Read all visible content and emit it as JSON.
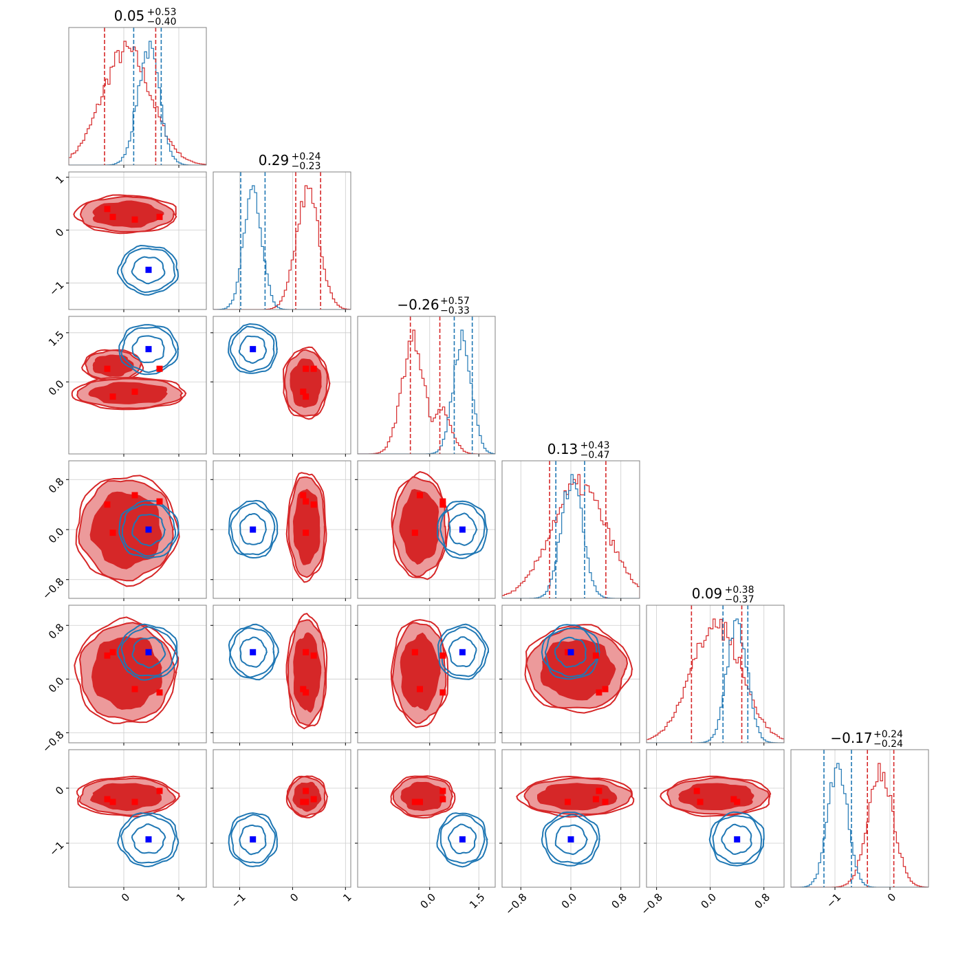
{
  "chart_data": {
    "type": "corner",
    "colors": {
      "red": "#d62728",
      "blue": "#1f77b4",
      "red_fill_inner": "#d62728",
      "red_fill_outer": "#ec9a9b",
      "red_marker": "#ff0000",
      "blue_marker": "#0000ff",
      "grid": "#cccccc",
      "frame": "#808080"
    },
    "grid": true,
    "parameters": [
      {
        "title_main": "0.05",
        "title_sup": "+0.53",
        "title_sub": "−0.40",
        "range": [
          -1.0,
          1.5
        ],
        "ticks": [
          0,
          1
        ],
        "tick_labels": [
          "0",
          "1"
        ],
        "red_hist": {
          "mean": 0.05,
          "sd": 0.45,
          "extra": [
            [
              -0.25,
              0.25,
              0.6
            ]
          ]
        },
        "blue_hist": {
          "mean": 0.45,
          "sd": 0.2
        },
        "red_lines": [
          -0.35,
          0.58
        ],
        "blue_lines": [
          0.18,
          0.68
        ]
      },
      {
        "title_main": "0.29",
        "title_sup": "+0.24",
        "title_sub": "−0.23",
        "range": [
          -1.5,
          1.1
        ],
        "ticks": [
          -1,
          0,
          1
        ],
        "tick_labels": [
          "−1",
          "0",
          "1"
        ],
        "red_hist": {
          "mean": 0.29,
          "sd": 0.22
        },
        "blue_hist": {
          "mean": -0.75,
          "sd": 0.17
        },
        "red_lines": [
          0.06,
          0.53
        ],
        "blue_lines": [
          -0.98,
          -0.52
        ]
      },
      {
        "title_main": "−0.26",
        "title_sup": "+0.57",
        "title_sub": "−0.33",
        "range": [
          -2.2,
          2.0
        ],
        "ticks": [
          0.0,
          1.5
        ],
        "tick_labels": [
          "0.0",
          "1.5"
        ],
        "red_hist": {
          "mean": -0.5,
          "sd": 0.35,
          "extra": [
            [
              0.35,
              0.3,
              0.4
            ]
          ]
        },
        "blue_hist": {
          "mean": 1.0,
          "sd": 0.28
        },
        "red_lines": [
          -0.59,
          0.31
        ],
        "blue_lines": [
          0.75,
          1.3
        ]
      },
      {
        "title_main": "0.13",
        "title_sup": "+0.43",
        "title_sub": "−0.47",
        "range": [
          -1.1,
          1.1
        ],
        "ticks": [
          -0.8,
          0.0,
          0.8
        ],
        "tick_labels": [
          "−0.8",
          "0.0",
          "0.8"
        ],
        "red_hist": {
          "mean": 0.13,
          "sd": 0.45
        },
        "blue_hist": {
          "mean": 0.02,
          "sd": 0.17
        },
        "red_lines": [
          -0.34,
          0.56
        ],
        "blue_lines": [
          -0.24,
          0.22
        ]
      },
      {
        "title_main": "0.09",
        "title_sup": "+0.38",
        "title_sub": "−0.37",
        "range": [
          -0.95,
          1.1
        ],
        "ticks": [
          -0.8,
          0.0,
          0.8
        ],
        "tick_labels": [
          "−0.8",
          "0.0",
          "0.8"
        ],
        "red_hist": {
          "mean": 0.09,
          "sd": 0.38
        },
        "blue_hist": {
          "mean": 0.4,
          "sd": 0.15
        },
        "red_lines": [
          -0.28,
          0.47
        ],
        "blue_lines": [
          0.19,
          0.56
        ]
      },
      {
        "title_main": "−0.17",
        "title_sup": "+0.24",
        "title_sub": "−0.24",
        "range": [
          -1.8,
          0.7
        ],
        "ticks": [
          -1,
          0
        ],
        "tick_labels": [
          "−1",
          "0"
        ],
        "red_hist": {
          "mean": -0.17,
          "sd": 0.23
        },
        "blue_hist": {
          "mean": -0.95,
          "sd": 0.18
        },
        "red_lines": [
          -0.41,
          0.07
        ],
        "blue_lines": [
          -1.2,
          -0.7
        ]
      }
    ],
    "blue_truth": [
      0.45,
      -0.75,
      1.0,
      0.0,
      0.4,
      -0.93
    ],
    "red_markers": [
      [
        -0.3,
        0.4,
        0.4,
        0.4,
        0.35,
        -0.2
      ],
      [
        -0.2,
        0.25,
        -0.45,
        -0.05,
        0.4,
        -0.25
      ],
      [
        0.2,
        0.2,
        -0.3,
        0.55,
        -0.15,
        -0.25
      ],
      [
        0.65,
        0.25,
        0.4,
        0.45,
        -0.2,
        -0.05
      ]
    ],
    "red_blobs": {
      "1-0": {
        "cx": 0.05,
        "cy": 0.3,
        "rx": 0.85,
        "ry": 0.33
      },
      "2-0": {
        "parts": [
          {
            "cx": -0.2,
            "cy": 0.5,
            "rx": 0.5,
            "ry": 0.45
          },
          {
            "cx": 0.1,
            "cy": -0.35,
            "rx": 0.95,
            "ry": 0.45
          }
        ]
      },
      "2-1": {
        "cx": 0.25,
        "cy": -0.05,
        "rx": 0.4,
        "ry": 1.0
      },
      "3-0": {
        "cx": 0.05,
        "cy": 0.0,
        "rx": 0.85,
        "ry": 0.8
      },
      "3-1": {
        "cx": 0.27,
        "cy": 0.05,
        "rx": 0.34,
        "ry": 0.8
      },
      "3-2": {
        "cx": -0.3,
        "cy": 0.05,
        "rx": 0.8,
        "ry": 0.78
      },
      "4-0": {
        "cx": 0.05,
        "cy": 0.1,
        "rx": 0.85,
        "ry": 0.72
      },
      "4-1": {
        "cx": 0.27,
        "cy": 0.1,
        "rx": 0.35,
        "ry": 0.78
      },
      "4-2": {
        "cx": -0.3,
        "cy": 0.1,
        "rx": 0.8,
        "ry": 0.74
      },
      "4-3": {
        "cx": 0.1,
        "cy": 0.15,
        "rx": 0.78,
        "ry": 0.6
      },
      "5-0": {
        "cx": 0.05,
        "cy": -0.15,
        "rx": 0.85,
        "ry": 0.33
      },
      "5-1": {
        "cx": 0.27,
        "cy": -0.15,
        "rx": 0.35,
        "ry": 0.35
      },
      "5-2": {
        "cx": -0.2,
        "cy": -0.15,
        "rx": 0.9,
        "ry": 0.35
      },
      "5-3": {
        "cx": 0.1,
        "cy": -0.15,
        "rx": 0.85,
        "ry": 0.33
      },
      "5-4": {
        "cx": 0.1,
        "cy": -0.15,
        "rx": 0.75,
        "ry": 0.33
      }
    },
    "blue_sd": [
      0.2,
      0.17,
      0.28,
      0.17,
      0.15,
      0.18
    ]
  }
}
